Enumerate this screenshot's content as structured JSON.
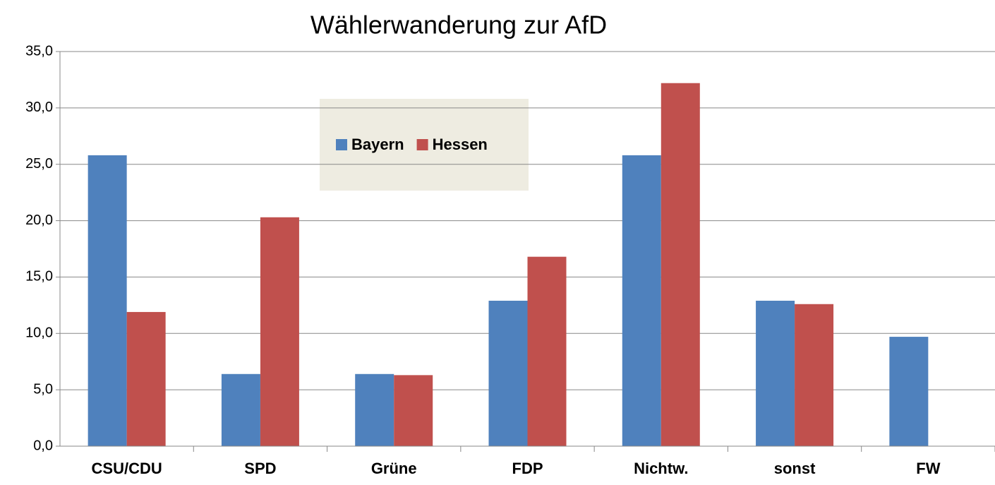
{
  "chart_data": {
    "type": "bar",
    "title": "Wählerwanderung zur AfD",
    "categories": [
      "CSU/CDU",
      "SPD",
      "Grüne",
      "FDP",
      "Nichtw.",
      "sonst",
      "FW"
    ],
    "series": [
      {
        "name": "Bayern",
        "color": "#4f81bd",
        "values": [
          25.8,
          6.4,
          6.4,
          12.9,
          25.8,
          12.9,
          9.7
        ]
      },
      {
        "name": "Hessen",
        "color": "#c0504d",
        "values": [
          11.9,
          20.3,
          6.3,
          16.8,
          32.2,
          12.6,
          null
        ]
      }
    ],
    "ylim": [
      0,
      35
    ],
    "yticks": [
      {
        "value": 0,
        "label": "0,0"
      },
      {
        "value": 5,
        "label": "5,0"
      },
      {
        "value": 10,
        "label": "10,0"
      },
      {
        "value": 15,
        "label": "15,0"
      },
      {
        "value": 20,
        "label": "20,0"
      },
      {
        "value": 25,
        "label": "25,0"
      },
      {
        "value": 30,
        "label": "30,0"
      },
      {
        "value": 35,
        "label": "35,0"
      }
    ],
    "grid": true
  }
}
